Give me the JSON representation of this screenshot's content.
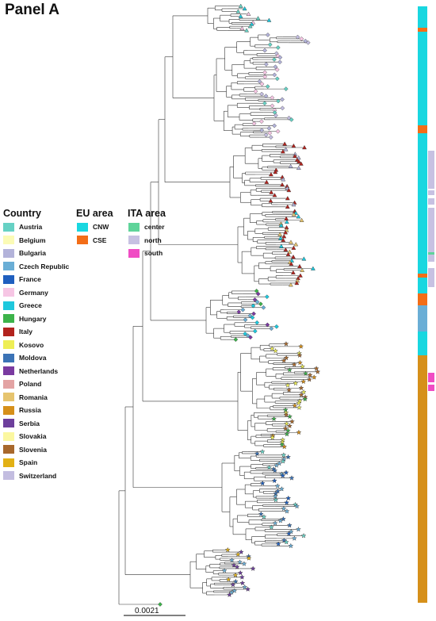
{
  "panel_title": "Panel A",
  "legends": {
    "country": {
      "title": "Country",
      "items": [
        {
          "label": "Austria",
          "color": "#66d1c4"
        },
        {
          "label": "Belgium",
          "color": "#fbfbb6"
        },
        {
          "label": "Bulgaria",
          "color": "#b3b3da"
        },
        {
          "label": "Czech Republic",
          "color": "#6aaed6"
        },
        {
          "label": "France",
          "color": "#1f5fbf"
        },
        {
          "label": "Germany",
          "color": "#f6c6e4"
        },
        {
          "label": "Greece",
          "color": "#1ec8dd"
        },
        {
          "label": "Hungary",
          "color": "#3cb34a"
        },
        {
          "label": "Italy",
          "color": "#b2231e"
        },
        {
          "label": "Kosovo",
          "color": "#eeee55"
        },
        {
          "label": "Moldova",
          "color": "#3b73b6"
        },
        {
          "label": "Netherlands",
          "color": "#7a3aa0"
        },
        {
          "label": "Poland",
          "color": "#e3a3a3"
        },
        {
          "label": "Romania",
          "color": "#e6c46e"
        },
        {
          "label": "Russia",
          "color": "#d6901a"
        },
        {
          "label": "Serbia",
          "color": "#6d3f9c"
        },
        {
          "label": "Slovakia",
          "color": "#fbf7a0"
        },
        {
          "label": "Slovenia",
          "color": "#a8682c"
        },
        {
          "label": "Spain",
          "color": "#e2b115"
        },
        {
          "label": "Switzerland",
          "color": "#c3bde0"
        }
      ]
    },
    "eu_area": {
      "title": "EU area",
      "items": [
        {
          "label": "CNW",
          "color": "#19d7e0"
        },
        {
          "label": "CSE",
          "color": "#f36d17"
        }
      ]
    },
    "ita_area": {
      "title": "ITA area",
      "items": [
        {
          "label": "center",
          "color": "#5fd49a"
        },
        {
          "label": "north",
          "color": "#c7c1e2"
        },
        {
          "label": "south",
          "color": "#f04cc4"
        }
      ]
    }
  },
  "scale_bar": {
    "label": "0.0021"
  }
}
